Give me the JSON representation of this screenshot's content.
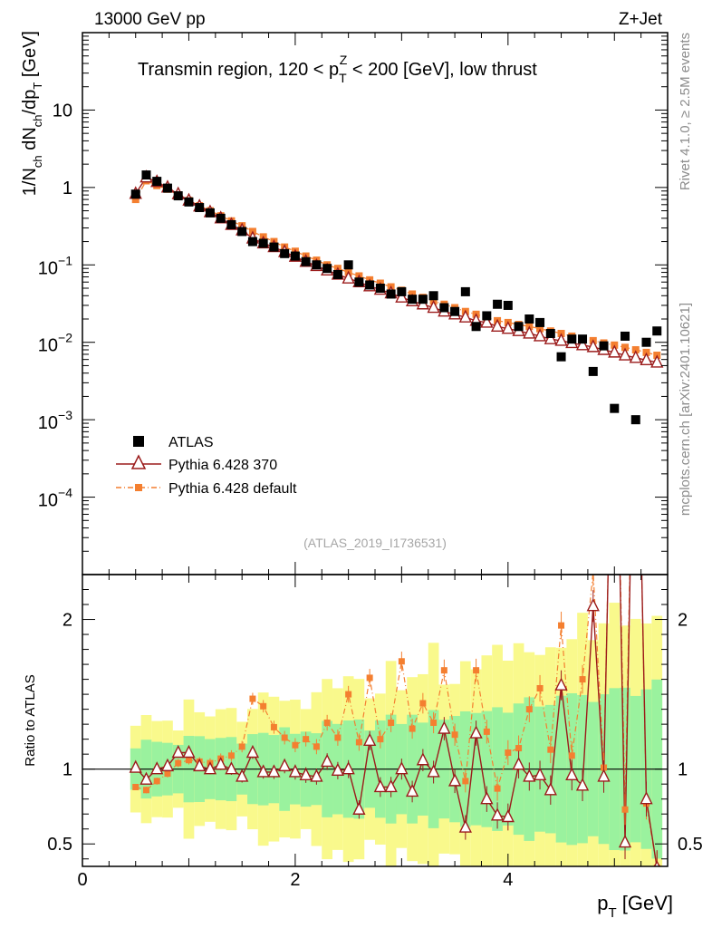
{
  "header": {
    "left": "13000 GeV pp",
    "right": "Z+Jet"
  },
  "side_labels": {
    "top": "Rivet 4.1.0, ≥ 2.5M events",
    "bottom": "mcplots.cern.ch [arXiv:2401.10621]"
  },
  "chart_data": {
    "type": "scatter",
    "title": "Transmin region, 120 < p_T^Z < 200 [GeV], low thrust",
    "title_parts": {
      "a": "Transmin region, 120 < p",
      "sub": "T",
      "sup": "Z",
      "b": " < 200 [GeV], low thrust"
    },
    "analysis_tag": "(ATLAS_2019_I1736531)",
    "xlabel": "p_T [GeV]",
    "xlabel_parts": {
      "main": "p",
      "sub": "T",
      "unit": " [GeV]"
    },
    "ylabel": "1/N_ch dN_ch/dp_T [GeV]",
    "ylabel_parts": {
      "a": "1/N",
      "ch1": "ch",
      "b": " dN",
      "ch2": "ch",
      "c": "/dp",
      "t": "T",
      "d": " [GeV]"
    },
    "ratio_ylabel": "Ratio to ATLAS",
    "xlim": [
      0,
      5.5
    ],
    "ylim_log": [
      1e-05,
      100
    ],
    "ratio_ylim": [
      0.35,
      2.3
    ],
    "x_ticks": [
      0,
      2,
      4
    ],
    "x_tick_labels": [
      "0",
      "2",
      "4"
    ],
    "y_ticks": [
      10,
      1,
      0.1,
      0.01,
      0.001,
      0.0001
    ],
    "y_tick_labels": [
      {
        "base": "10",
        "exp": ""
      },
      {
        "base": "1",
        "exp": ""
      },
      {
        "base": "10",
        "exp": "−1"
      },
      {
        "base": "10",
        "exp": "−2"
      },
      {
        "base": "10",
        "exp": "−3"
      },
      {
        "base": "10",
        "exp": "−4"
      }
    ],
    "ratio_ticks": [
      0.5,
      1,
      2
    ],
    "ratio_tick_labels": [
      "0.5",
      "1",
      "2"
    ],
    "legend_position": "middle-left",
    "series": [
      {
        "name": "ATLAS",
        "marker": "square",
        "color": "#000000",
        "x": [
          0.5,
          0.6,
          0.7,
          0.8,
          0.9,
          1.0,
          1.1,
          1.2,
          1.3,
          1.4,
          1.5,
          1.6,
          1.7,
          1.8,
          1.9,
          2.0,
          2.1,
          2.2,
          2.3,
          2.4,
          2.5,
          2.6,
          2.7,
          2.8,
          2.9,
          3.0,
          3.1,
          3.2,
          3.3,
          3.4,
          3.5,
          3.6,
          3.7,
          3.8,
          3.9,
          4.0,
          4.1,
          4.2,
          4.3,
          4.4,
          4.5,
          4.6,
          4.7,
          4.8,
          4.9,
          5.0,
          5.1,
          5.2,
          5.3,
          5.4
        ],
        "y": [
          0.82,
          1.45,
          1.2,
          0.98,
          0.78,
          0.65,
          0.55,
          0.47,
          0.4,
          0.33,
          0.27,
          0.2,
          0.19,
          0.17,
          0.14,
          0.13,
          0.11,
          0.1,
          0.09,
          0.075,
          0.1,
          0.06,
          0.055,
          0.05,
          0.042,
          0.045,
          0.036,
          0.036,
          0.04,
          0.028,
          0.025,
          0.045,
          0.016,
          0.022,
          0.031,
          0.03,
          0.016,
          0.02,
          0.018,
          0.013,
          0.0065,
          0.011,
          0.011,
          0.0042,
          0.009,
          0.0014,
          0.012,
          0.001,
          0.01,
          0.014
        ]
      },
      {
        "name": "Pythia 6.428 370",
        "marker": "open-triangle",
        "color": "#9b1b1b",
        "x": [
          0.5,
          0.6,
          0.7,
          0.8,
          0.9,
          1.0,
          1.1,
          1.2,
          1.3,
          1.4,
          1.5,
          1.6,
          1.7,
          1.8,
          1.9,
          2.0,
          2.1,
          2.2,
          2.3,
          2.4,
          2.5,
          2.6,
          2.7,
          2.8,
          2.9,
          3.0,
          3.1,
          3.2,
          3.3,
          3.4,
          3.5,
          3.6,
          3.7,
          3.8,
          3.9,
          4.0,
          4.1,
          4.2,
          4.3,
          4.4,
          4.5,
          4.6,
          4.7,
          4.8,
          4.9,
          5.0,
          5.1,
          5.2,
          5.3,
          5.4
        ],
        "y": [
          0.83,
          1.35,
          1.18,
          1.0,
          0.82,
          0.68,
          0.57,
          0.48,
          0.4,
          0.33,
          0.28,
          0.22,
          0.19,
          0.17,
          0.147,
          0.128,
          0.11,
          0.097,
          0.085,
          0.075,
          0.067,
          0.06,
          0.053,
          0.048,
          0.043,
          0.038,
          0.034,
          0.031,
          0.028,
          0.025,
          0.023,
          0.021,
          0.019,
          0.018,
          0.016,
          0.015,
          0.014,
          0.013,
          0.012,
          0.011,
          0.0105,
          0.0098,
          0.0092,
          0.0087,
          0.008,
          0.0074,
          0.0068,
          0.0063,
          0.0059,
          0.0055
        ]
      },
      {
        "name": "Pythia 6.428 default",
        "marker": "filled-square-dashdot",
        "color": "#f47f30",
        "x": [
          0.5,
          0.6,
          0.7,
          0.8,
          0.9,
          1.0,
          1.1,
          1.2,
          1.3,
          1.4,
          1.5,
          1.6,
          1.7,
          1.8,
          1.9,
          2.0,
          2.1,
          2.2,
          2.3,
          2.4,
          2.5,
          2.6,
          2.7,
          2.8,
          2.9,
          3.0,
          3.1,
          3.2,
          3.3,
          3.4,
          3.5,
          3.6,
          3.7,
          3.8,
          3.9,
          4.0,
          4.1,
          4.2,
          4.3,
          4.4,
          4.5,
          4.6,
          4.7,
          4.8,
          4.9,
          5.0,
          5.1,
          5.2,
          5.3,
          5.4
        ],
        "y": [
          0.7,
          1.22,
          1.06,
          0.95,
          0.8,
          0.68,
          0.58,
          0.5,
          0.43,
          0.37,
          0.32,
          0.27,
          0.23,
          0.2,
          0.17,
          0.15,
          0.13,
          0.115,
          0.1,
          0.09,
          0.08,
          0.072,
          0.064,
          0.058,
          0.052,
          0.047,
          0.042,
          0.038,
          0.034,
          0.031,
          0.028,
          0.025,
          0.023,
          0.021,
          0.019,
          0.018,
          0.017,
          0.016,
          0.015,
          0.014,
          0.013,
          0.012,
          0.011,
          0.0105,
          0.0098,
          0.0092,
          0.0086,
          0.008,
          0.0074,
          0.0068
        ]
      }
    ],
    "ratio": {
      "x": [
        0.5,
        0.6,
        0.7,
        0.8,
        0.9,
        1.0,
        1.1,
        1.2,
        1.3,
        1.4,
        1.5,
        1.6,
        1.7,
        1.8,
        1.9,
        2.0,
        2.1,
        2.2,
        2.3,
        2.4,
        2.5,
        2.6,
        2.7,
        2.8,
        2.9,
        3.0,
        3.1,
        3.2,
        3.3,
        3.4,
        3.5,
        3.6,
        3.7,
        3.8,
        3.9,
        4.0,
        4.1,
        4.2,
        4.3,
        4.4,
        4.5,
        4.6,
        4.7,
        4.8,
        4.9,
        5.0,
        5.1,
        5.2,
        5.3,
        5.4
      ],
      "pythia_370": [
        1.01,
        0.93,
        1.0,
        1.02,
        1.11,
        1.11,
        1.02,
        1.0,
        1.03,
        1.0,
        0.95,
        1.11,
        0.98,
        0.98,
        1.02,
        0.98,
        0.96,
        0.95,
        1.05,
        0.99,
        1.0,
        0.73,
        1.19,
        0.88,
        0.88,
        1.0,
        0.85,
        1.06,
        0.98,
        1.27,
        0.92,
        0.61,
        1.24,
        0.8,
        0.69,
        0.68,
        1.03,
        0.95,
        0.96,
        0.86,
        1.56,
        0.96,
        0.89,
        2.09,
        0.95,
        4.5,
        0.51,
        5.0,
        0.8,
        0.34
      ],
      "pythia_default": [
        0.88,
        0.86,
        0.92,
        0.97,
        1.04,
        1.06,
        1.05,
        1.04,
        1.07,
        1.09,
        1.15,
        1.47,
        1.42,
        1.28,
        1.21,
        1.16,
        1.2,
        1.15,
        1.31,
        1.21,
        1.5,
        1.18,
        1.61,
        1.2,
        1.31,
        1.72,
        1.27,
        1.44,
        1.31,
        1.66,
        1.23,
        0.92,
        1.66,
        1.25,
        0.87,
        1.11,
        1.14,
        1.4,
        1.54,
        1.13,
        1.96,
        1.09,
        1.6,
        2.32,
        1.01,
        4.5,
        0.73,
        5.0,
        0.77,
        0.34
      ]
    }
  },
  "colors": {
    "band_inner": "#9af29e",
    "band_outer": "#f9f98c"
  }
}
